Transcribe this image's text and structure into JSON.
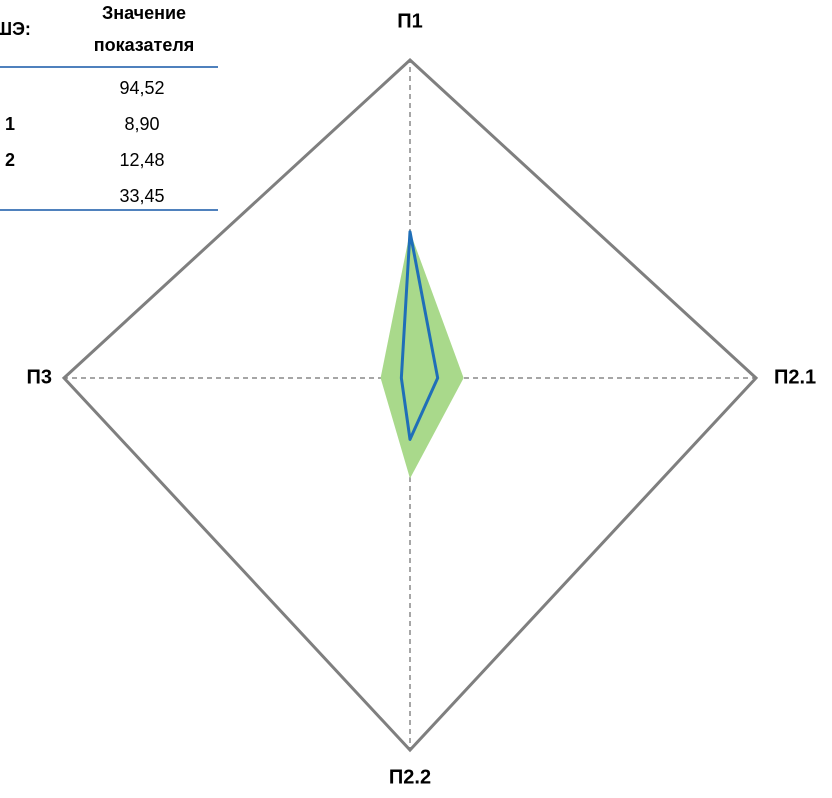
{
  "table": {
    "header": [
      "ШЭ:",
      "Значение",
      "показателя"
    ],
    "rows": [
      {
        "value": "94,52"
      },
      {
        "label": "1",
        "value": "8,90"
      },
      {
        "label": "2",
        "value": "12,48"
      },
      {
        "value": "33,45"
      }
    ]
  },
  "chart_data": {
    "type": "radar",
    "categories": [
      "П1",
      "П2.1",
      "П2.2",
      "П3"
    ],
    "rlim": [
      0,
      200
    ],
    "series": [
      {
        "color": "#a9d98b",
        "fill": true,
        "values": [
          92,
          31,
          54,
          17
        ]
      },
      {
        "color": "#1f6fb8",
        "fill": false,
        "values": [
          92,
          16,
          33,
          5
        ]
      }
    ]
  }
}
